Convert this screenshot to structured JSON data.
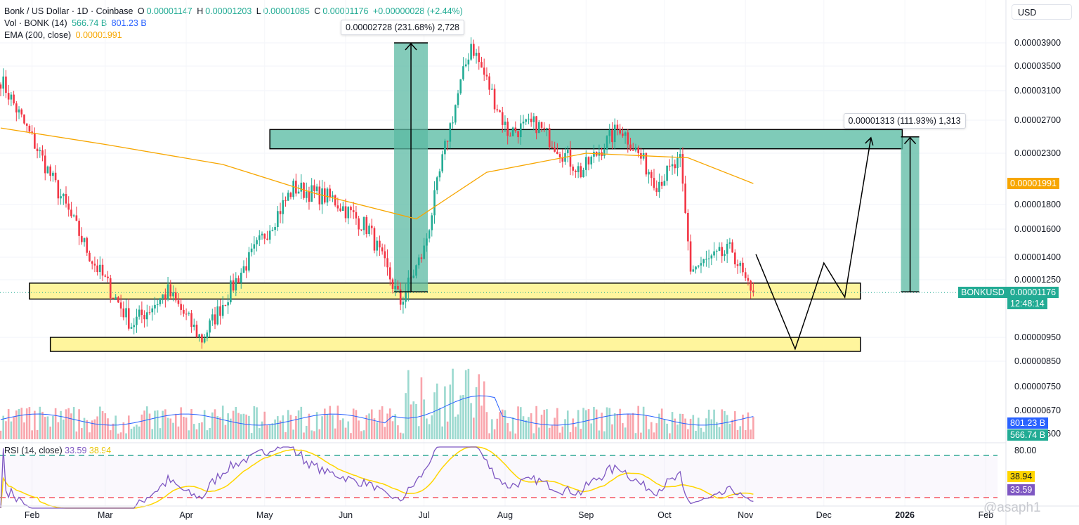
{
  "legend": {
    "symbol": "Bonk / US Dollar · 1D · Coinbase",
    "o_label": "O",
    "o_val": "0.00001147",
    "h_label": "H",
    "h_val": "0.00001203",
    "l_label": "L",
    "l_val": "0.00001085",
    "c_label": "C",
    "c_val": "0.00001176",
    "change": "+0.00000028 (+2.44%)",
    "vol_label": "Vol · BONK (14)",
    "vol_val1": "566.74 B",
    "vol_val2": "801.23 B",
    "ema_label": "EMA (200, close)",
    "ema_val": "0.00001991",
    "rsi_label": "RSI (14, close)",
    "rsi_val1": "33.59",
    "rsi_val2": "38.94"
  },
  "currency": "USD",
  "measure_top": "0.00002728 (231.68%) 2,728",
  "measure_right": "0.00001313 (111.93%) 1,313",
  "badges": {
    "ema": "0.00001991",
    "symbol": "BONKUSD",
    "price": "0.00001176",
    "countdown": "12:48:14",
    "vol_ma": "801.23 B",
    "vol": "566.74 B",
    "rsi_ma": "38.94",
    "rsi": "33.59"
  },
  "watermark": "@asaph1",
  "colors": {
    "up": "#22ab94",
    "down": "#f23645",
    "ema": "#f7a600",
    "zone_green": "#7fcbb8",
    "zone_yellow": "#fff59d",
    "vol_ma": "#2962ff",
    "rsi": "#7e57c2",
    "rsi_ma": "#ffd600"
  },
  "chart_data": {
    "type": "candlestick",
    "title": "Bonk / US Dollar · 1D · Coinbase",
    "y_scale": "log",
    "y_ticks": [
      "0.00003900",
      "0.00003500",
      "0.00003100",
      "0.00002700",
      "0.00002300",
      "0.00001800",
      "0.00001600",
      "0.00001400",
      "0.00001250",
      "0.00000950",
      "0.00000850"
    ],
    "volume_ticks": [
      "0.00000750",
      "0.00000670",
      "0.00000600"
    ],
    "rsi_ticks": [
      "80.00"
    ],
    "x_ticks": [
      "Feb",
      "Mar",
      "Apr",
      "May",
      "Jun",
      "Jul",
      "Aug",
      "Sep",
      "Oct",
      "Nov",
      "Dec",
      "2026",
      "Feb"
    ],
    "rsi_bands": [
      70,
      30
    ],
    "ema200_last": 1.991e-05,
    "last_close": 1.176e-05,
    "anchors": [
      {
        "date": "2025-01-20",
        "price": 3.28e-05
      },
      {
        "date": "2025-02-03",
        "price": 2.35e-05
      },
      {
        "date": "2025-02-24",
        "price": 1.38e-05
      },
      {
        "date": "2025-03-11",
        "price": 1.01e-05
      },
      {
        "date": "2025-03-25",
        "price": 1.18e-05
      },
      {
        "date": "2025-04-07",
        "price": 9.4e-06
      },
      {
        "date": "2025-04-22",
        "price": 1.3e-05
      },
      {
        "date": "2025-05-12",
        "price": 1.95e-05
      },
      {
        "date": "2025-05-27",
        "price": 1.85e-05
      },
      {
        "date": "2025-06-10",
        "price": 1.6e-05
      },
      {
        "date": "2025-06-22",
        "price": 1.12e-05
      },
      {
        "date": "2025-07-01",
        "price": 1.45e-05
      },
      {
        "date": "2025-07-10",
        "price": 2.5e-05
      },
      {
        "date": "2025-07-19",
        "price": 3.9e-05
      },
      {
        "date": "2025-08-02",
        "price": 2.55e-05
      },
      {
        "date": "2025-08-13",
        "price": 2.65e-05
      },
      {
        "date": "2025-08-30",
        "price": 2.1e-05
      },
      {
        "date": "2025-09-14",
        "price": 2.62e-05
      },
      {
        "date": "2025-09-28",
        "price": 2e-05
      },
      {
        "date": "2025-10-07",
        "price": 2.2e-05
      },
      {
        "date": "2025-10-11",
        "price": 1.32e-05
      },
      {
        "date": "2025-10-27",
        "price": 1.45e-05
      },
      {
        "date": "2025-11-04",
        "price": 1.12e-05
      }
    ],
    "ema200_path": [
      {
        "date": "2025-01-20",
        "price": 2.6e-05
      },
      {
        "date": "2025-03-01",
        "price": 2.4e-05
      },
      {
        "date": "2025-04-15",
        "price": 2.18e-05
      },
      {
        "date": "2025-05-20",
        "price": 1.9e-05
      },
      {
        "date": "2025-06-28",
        "price": 1.68e-05
      },
      {
        "date": "2025-07-25",
        "price": 2.1e-05
      },
      {
        "date": "2025-09-01",
        "price": 2.3e-05
      },
      {
        "date": "2025-10-10",
        "price": 2.25e-05
      },
      {
        "date": "2025-11-04",
        "price": 1.99e-05
      }
    ],
    "zones": [
      {
        "color": "green",
        "from_date": "2025-05-03",
        "to_date": "2025-12-31",
        "low": 2.35e-05,
        "high": 2.58e-05
      },
      {
        "color": "yellow",
        "from_date": "2025-01-31",
        "to_date": "2025-12-15",
        "low": 1.14e-05,
        "high": 1.23e-05
      },
      {
        "color": "yellow",
        "from_date": "2025-02-08",
        "to_date": "2025-12-15",
        "low": 8.9e-06,
        "high": 9.5e-06
      }
    ],
    "measure_up_1": {
      "date": "2025-06-26",
      "from": 1.18e-05,
      "to": 3.9e-05
    },
    "measure_up_2": {
      "date": "2026-01-03",
      "from": 1.18e-05,
      "to": 2.49e-05
    },
    "projection_path": [
      {
        "date": "2025-11-05",
        "price": 1.42e-05
      },
      {
        "date": "2025-11-20",
        "price": 9e-06
      },
      {
        "date": "2025-12-01",
        "price": 1.36e-05
      },
      {
        "date": "2025-12-09",
        "price": 1.15e-05
      },
      {
        "date": "2025-12-19",
        "price": 2.48e-05
      }
    ]
  }
}
